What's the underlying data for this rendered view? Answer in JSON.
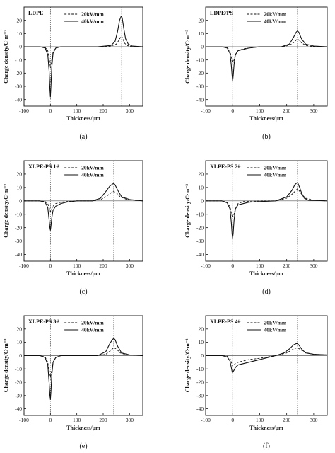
{
  "chart_data": [
    {
      "type": "line",
      "title": "LDPE",
      "caption": "(a)",
      "xlabel": "Thickness/μm",
      "ylabel": "Charge density/C·m⁻³",
      "xlim": [
        -100,
        350
      ],
      "ylim": [
        -45,
        30
      ],
      "xticks": [
        -100,
        0,
        100,
        200,
        300
      ],
      "yticks": [
        -40,
        -30,
        -20,
        -10,
        0,
        10,
        20
      ],
      "vlines": [
        0,
        270
      ],
      "legend_position": "top-right",
      "series": [
        {
          "name": "20kV/mm",
          "style": "dashed",
          "x": [
            -100,
            -40,
            -20,
            -10,
            -5,
            0,
            5,
            10,
            20,
            40,
            100,
            180,
            230,
            250,
            260,
            265,
            270,
            275,
            280,
            290,
            310,
            350
          ],
          "y": [
            0,
            0,
            -0.5,
            -3,
            -8,
            -16,
            -10,
            -4,
            -1,
            0,
            0,
            0,
            0.5,
            2,
            5,
            7,
            8,
            6,
            3,
            1,
            0,
            0
          ]
        },
        {
          "name": "40kV/mm",
          "style": "solid",
          "x": [
            -100,
            -40,
            -20,
            -10,
            -5,
            -2,
            0,
            2,
            5,
            10,
            20,
            40,
            100,
            180,
            230,
            245,
            255,
            262,
            268,
            272,
            278,
            285,
            295,
            310,
            350
          ],
          "y": [
            0,
            0,
            -1,
            -6,
            -18,
            -32,
            -38,
            -30,
            -16,
            -5,
            -1,
            0,
            0,
            0,
            1,
            4,
            12,
            20,
            23,
            22,
            14,
            6,
            2,
            0.5,
            0
          ]
        }
      ]
    },
    {
      "type": "line",
      "title": "LDPE/PS",
      "caption": "(b)",
      "xlabel": "Thickness/μm",
      "ylabel": "Charge density/C·m⁻³",
      "xlim": [
        -100,
        350
      ],
      "ylim": [
        -45,
        30
      ],
      "xticks": [
        -100,
        0,
        100,
        200,
        300
      ],
      "yticks": [
        -40,
        -30,
        -20,
        -10,
        0,
        10,
        20
      ],
      "vlines": [
        0,
        240
      ],
      "legend_position": "top-right",
      "series": [
        {
          "name": "20kV/mm",
          "style": "dashed",
          "x": [
            -100,
            -40,
            -20,
            -10,
            -5,
            0,
            5,
            10,
            20,
            40,
            60,
            100,
            180,
            210,
            225,
            235,
            240,
            245,
            255,
            270,
            300,
            350
          ],
          "y": [
            0,
            0,
            -0.5,
            -3,
            -8,
            -13,
            -10,
            -6,
            -3,
            -1.5,
            -1,
            0,
            0,
            1,
            3,
            5,
            6,
            5,
            3,
            1,
            0,
            0
          ]
        },
        {
          "name": "40kV/mm",
          "style": "solid",
          "x": [
            -100,
            -40,
            -20,
            -10,
            -5,
            -2,
            0,
            2,
            5,
            10,
            20,
            40,
            60,
            100,
            180,
            210,
            225,
            235,
            240,
            245,
            255,
            270,
            300,
            350
          ],
          "y": [
            0,
            0,
            -1,
            -5,
            -14,
            -22,
            -26,
            -22,
            -14,
            -6,
            -3,
            -2,
            -1,
            0,
            0,
            2,
            7,
            11,
            12,
            11,
            6,
            2,
            0.5,
            0
          ]
        }
      ]
    },
    {
      "type": "line",
      "title": "XLPE-PS 1#",
      "caption": "(c)",
      "xlabel": "Thickness/μm",
      "ylabel": "Charge density/C·m⁻³",
      "xlim": [
        -100,
        350
      ],
      "ylim": [
        -45,
        30
      ],
      "xticks": [
        -100,
        0,
        100,
        200,
        300
      ],
      "yticks": [
        -40,
        -30,
        -20,
        -10,
        0,
        10,
        20
      ],
      "vlines": [
        0,
        240
      ],
      "legend_position": "top-right",
      "series": [
        {
          "name": "20kV/mm",
          "style": "dashed",
          "x": [
            -100,
            -40,
            -20,
            -10,
            -5,
            0,
            5,
            10,
            20,
            40,
            60,
            100,
            160,
            190,
            210,
            230,
            240,
            250,
            265,
            290,
            350
          ],
          "y": [
            0,
            0,
            -0.5,
            -2,
            -5,
            -8,
            -6,
            -4,
            -2,
            -1,
            -0.5,
            0,
            0,
            1,
            3,
            6,
            7,
            6,
            3,
            1,
            0
          ]
        },
        {
          "name": "40kV/mm",
          "style": "solid",
          "x": [
            -100,
            -40,
            -20,
            -10,
            -5,
            -2,
            0,
            2,
            5,
            10,
            20,
            40,
            60,
            100,
            160,
            190,
            210,
            225,
            235,
            240,
            245,
            255,
            270,
            300,
            350
          ],
          "y": [
            0,
            0,
            -1,
            -5,
            -14,
            -20,
            -22,
            -19,
            -13,
            -7,
            -4,
            -2,
            -1,
            0,
            0,
            2,
            7,
            11,
            12.5,
            13,
            12,
            8,
            3,
            1,
            0
          ]
        }
      ]
    },
    {
      "type": "line",
      "title": "XLPE-PS 2#",
      "caption": "(d)",
      "xlabel": "Thickness/μm",
      "ylabel": "Charge density/C·m⁻³",
      "xlim": [
        -100,
        350
      ],
      "ylim": [
        -45,
        30
      ],
      "xticks": [
        -100,
        0,
        100,
        200,
        300
      ],
      "yticks": [
        -40,
        -30,
        -20,
        -10,
        0,
        10,
        20
      ],
      "vlines": [
        0,
        240
      ],
      "legend_position": "top-right",
      "series": [
        {
          "name": "20kV/mm",
          "style": "dashed",
          "x": [
            -100,
            -40,
            -20,
            -10,
            -5,
            0,
            5,
            10,
            20,
            40,
            100,
            160,
            200,
            220,
            235,
            240,
            245,
            255,
            270,
            300,
            350
          ],
          "y": [
            0,
            0,
            -1,
            -4,
            -9,
            -13,
            -10,
            -6,
            -2,
            -0.5,
            0,
            0,
            2,
            5,
            8,
            9,
            8,
            5,
            2,
            0.5,
            0
          ]
        },
        {
          "name": "40kV/mm",
          "style": "solid",
          "x": [
            -100,
            -40,
            -20,
            -10,
            -5,
            -2,
            0,
            2,
            5,
            10,
            20,
            40,
            60,
            100,
            160,
            200,
            220,
            230,
            238,
            242,
            248,
            255,
            265,
            280,
            350
          ],
          "y": [
            0,
            0,
            -1.5,
            -6,
            -16,
            -25,
            -28,
            -24,
            -15,
            -6,
            -3,
            -2,
            -1,
            -0.5,
            0,
            3,
            8,
            12,
            13.5,
            13,
            10,
            6,
            2,
            0.5,
            0
          ]
        }
      ]
    },
    {
      "type": "line",
      "title": "XLPE-PS 3#",
      "caption": "(e)",
      "xlabel": "Thickness/μm",
      "ylabel": "Charge density/C·m⁻³",
      "xlim": [
        -100,
        350
      ],
      "ylim": [
        -45,
        30
      ],
      "xticks": [
        -100,
        0,
        100,
        200,
        300
      ],
      "yticks": [
        -40,
        -30,
        -20,
        -10,
        0,
        10,
        20
      ],
      "vlines": [
        0,
        240
      ],
      "legend_position": "top-right",
      "series": [
        {
          "name": "20kV/mm",
          "style": "dashed",
          "x": [
            -100,
            -40,
            -20,
            -10,
            -5,
            0,
            5,
            10,
            20,
            40,
            100,
            180,
            210,
            230,
            240,
            250,
            265,
            290,
            350
          ],
          "y": [
            0,
            0,
            -1,
            -5,
            -11,
            -16,
            -11,
            -5,
            -1.5,
            0,
            0,
            0,
            1,
            4,
            6,
            5,
            2,
            0.5,
            0
          ]
        },
        {
          "name": "40kV/mm",
          "style": "solid",
          "x": [
            -100,
            -40,
            -20,
            -10,
            -5,
            -2,
            0,
            2,
            5,
            10,
            20,
            40,
            100,
            180,
            210,
            225,
            235,
            240,
            245,
            255,
            270,
            300,
            350
          ],
          "y": [
            0,
            0,
            -1.5,
            -7,
            -20,
            -30,
            -33,
            -27,
            -15,
            -5,
            -1.5,
            0,
            0,
            0,
            3,
            9,
            12,
            13,
            12,
            7,
            2,
            0.5,
            0
          ]
        }
      ]
    },
    {
      "type": "line",
      "title": "XLPE-PS 4#",
      "caption": "(f)",
      "xlabel": "Thickness/μm",
      "ylabel": "Charge density/C·m⁻³",
      "xlim": [
        -100,
        350
      ],
      "ylim": [
        -45,
        30
      ],
      "xticks": [
        -100,
        0,
        100,
        200,
        300
      ],
      "yticks": [
        -40,
        -30,
        -20,
        -10,
        0,
        10,
        20
      ],
      "vlines": [
        0,
        240
      ],
      "legend_position": "top-right",
      "series": [
        {
          "name": "20kV/mm",
          "style": "dashed",
          "x": [
            -100,
            -40,
            -20,
            -10,
            -5,
            0,
            5,
            10,
            20,
            40,
            60,
            100,
            160,
            200,
            225,
            240,
            255,
            275,
            300,
            350
          ],
          "y": [
            0,
            0,
            -0.5,
            -2,
            -5,
            -8,
            -7,
            -6,
            -5,
            -4,
            -3,
            -2,
            0,
            2,
            5,
            6,
            4,
            2,
            1,
            0.5
          ]
        },
        {
          "name": "40kV/mm",
          "style": "solid",
          "x": [
            -100,
            -40,
            -20,
            -10,
            -5,
            -2,
            0,
            2,
            5,
            10,
            20,
            40,
            60,
            100,
            160,
            190,
            210,
            225,
            235,
            240,
            245,
            255,
            270,
            300,
            350
          ],
          "y": [
            0,
            0,
            -1,
            -4,
            -9,
            -12,
            -13,
            -12,
            -11,
            -9,
            -7,
            -6,
            -5,
            -3,
            0,
            2,
            5,
            8,
            9,
            9,
            8,
            5,
            2,
            1,
            0.5
          ]
        }
      ]
    }
  ]
}
